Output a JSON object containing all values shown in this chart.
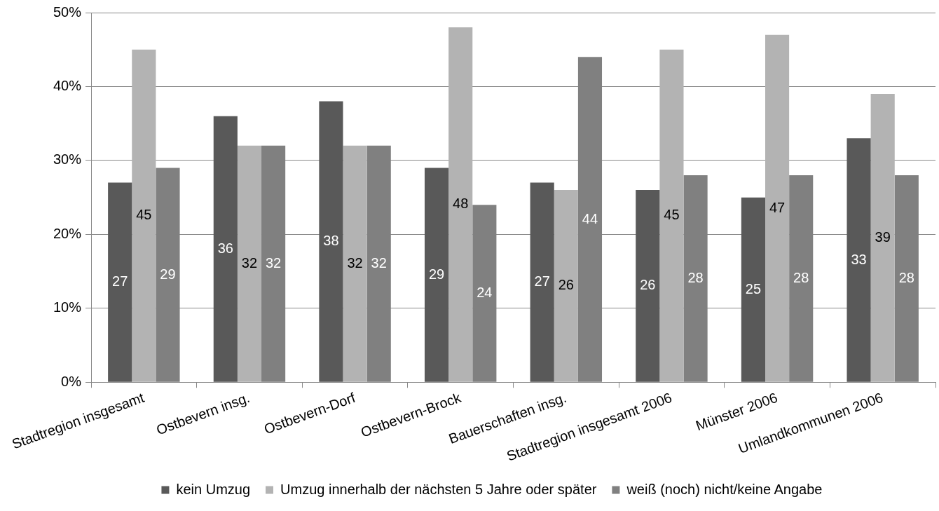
{
  "chart_data": {
    "type": "bar",
    "categories": [
      "Stadtregion insgesamt",
      "Ostbevern insg.",
      "Ostbevern-Dorf",
      "Ostbevern-Brock",
      "Bauerschaften insg.",
      "Stadtregion insgesamt 2006",
      "Münster 2006",
      "Umlandkommunen 2006"
    ],
    "series": [
      {
        "name": "kein Umzug",
        "color": "#595959",
        "values": [
          27,
          36,
          38,
          29,
          27,
          26,
          25,
          33
        ]
      },
      {
        "name": "Umzug innerhalb der nächsten 5 Jahre oder später",
        "color": "#b3b3b3",
        "values": [
          45,
          32,
          32,
          48,
          26,
          45,
          47,
          39
        ]
      },
      {
        "name": "weiß (noch) nicht/keine Angabe",
        "color": "#808080",
        "values": [
          29,
          32,
          32,
          24,
          44,
          28,
          28,
          28
        ]
      }
    ],
    "ylim": [
      0,
      50
    ],
    "yticks": [
      {
        "value": 0,
        "label": "0%"
      },
      {
        "value": 10,
        "label": "10%"
      },
      {
        "value": 20,
        "label": "20%"
      },
      {
        "value": 30,
        "label": "30%"
      },
      {
        "value": 40,
        "label": "40%"
      },
      {
        "value": 50,
        "label": "50%"
      }
    ],
    "grid": "y",
    "legend": "bottom",
    "data_labels": true
  }
}
